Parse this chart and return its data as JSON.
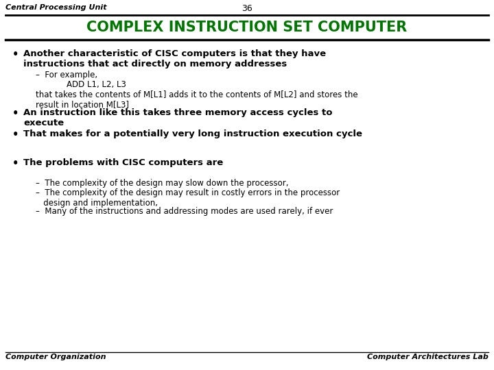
{
  "background_color": "#ffffff",
  "title_text": "COMPLEX INSTRUCTION SET COMPUTER",
  "title_color": "#007700",
  "title_fontsize": 15,
  "page_number": "36",
  "top_left_text": "Central Processing Unit",
  "bottom_left_text": "Computer Organization",
  "bottom_right_text": "Computer Architectures Lab",
  "bullet_fontsize": 9.5,
  "sub_fontsize": 8.5,
  "footer_fontsize": 8,
  "header_fontsize": 8,
  "content": [
    {
      "type": "bullet",
      "bold": true,
      "text": "Another characteristic of CISC computers is that they have\ninstructions that act directly on memory addresses",
      "nlines": 2
    },
    {
      "type": "sub",
      "bold": false,
      "text": "–  For example,",
      "nlines": 1
    },
    {
      "type": "sub",
      "bold": false,
      "text": "            ADD L1, L2, L3",
      "nlines": 1
    },
    {
      "type": "sub_italic",
      "bold": false,
      "text": "that takes the contents of M[L1] adds it to the contents of M[L2] and stores the\nresult in location M[L3]",
      "nlines": 2
    },
    {
      "type": "bullet",
      "bold": true,
      "text": "An instruction like this takes three memory access cycles to\nexecute",
      "nlines": 2
    },
    {
      "type": "bullet",
      "bold": true,
      "text": "That makes for a potentially very long instruction execution cycle",
      "nlines": 1
    },
    {
      "type": "spacer",
      "text": "",
      "nlines": 1
    },
    {
      "type": "spacer",
      "text": "",
      "nlines": 1
    },
    {
      "type": "bullet",
      "bold": true,
      "text": "The problems with CISC computers are",
      "nlines": 1
    },
    {
      "type": "spacer",
      "text": "",
      "nlines": 1
    },
    {
      "type": "sub",
      "bold": false,
      "text": "–  The complexity of the design may slow down the processor,",
      "nlines": 1
    },
    {
      "type": "sub",
      "bold": false,
      "text": "–  The complexity of the design may result in costly errors in the processor\n   design and implementation,",
      "nlines": 2
    },
    {
      "type": "sub",
      "bold": false,
      "text": "–  Many of the instructions and addressing modes are used rarely, if ever",
      "nlines": 1
    }
  ]
}
